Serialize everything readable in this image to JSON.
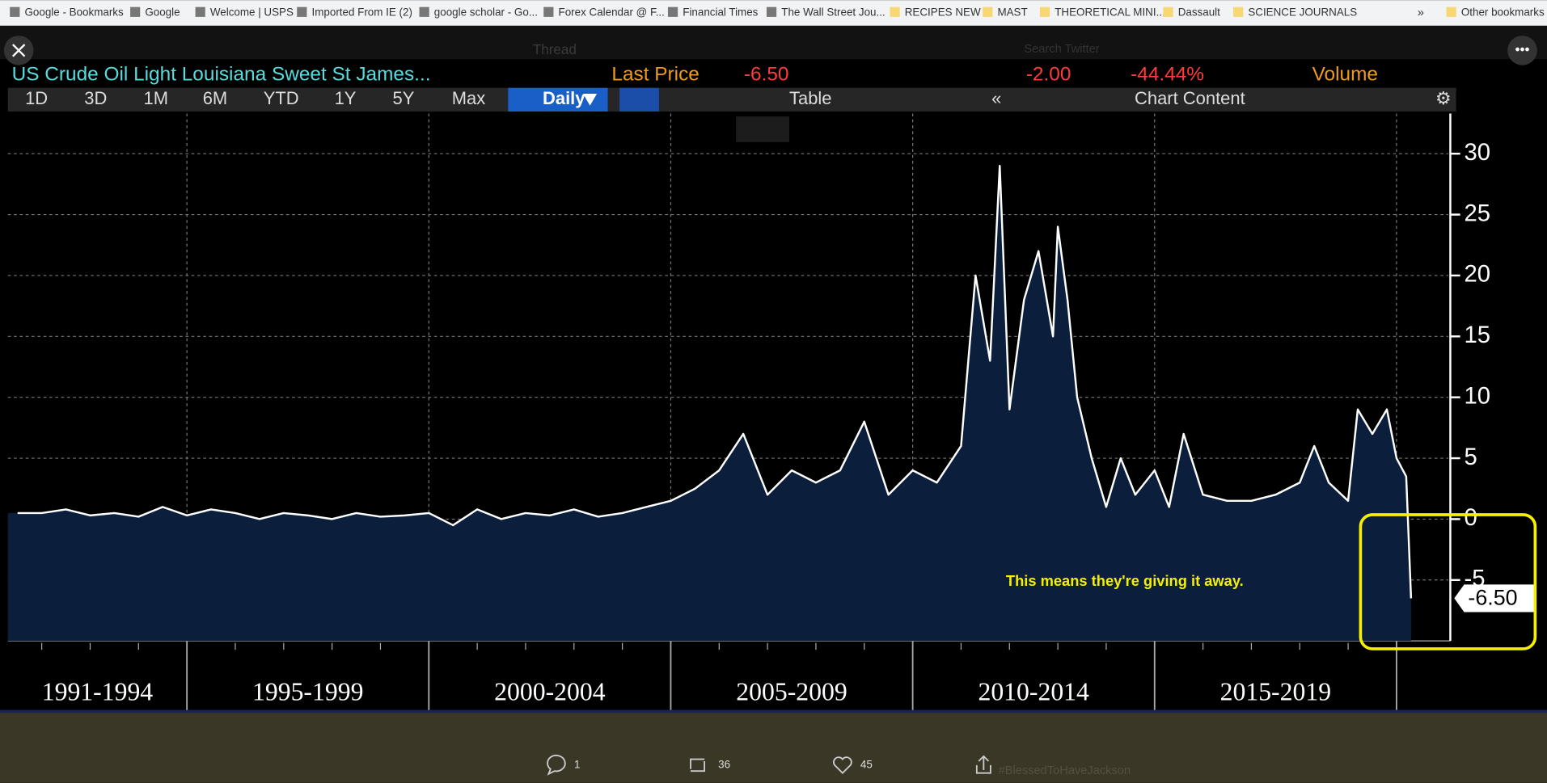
{
  "bookmarks": [
    "Google - Bookmarks",
    "Google",
    "Welcome | USPS",
    "Imported From IE (2)",
    "google scholar - Go...",
    "Forex Calendar @ F...",
    "Financial Times",
    "The Wall Street Jou...",
    "RECIPES NEW",
    "MAST",
    "THEORETICAL MINI...",
    "Dassault",
    "SCIENCE JOURNALS",
    "Other bookmarks"
  ],
  "background": {
    "thread": "Thread",
    "search": "Search Twitter",
    "hashtag": "#BlessedToHaveJackson"
  },
  "terminal": {
    "security": "US Crude Oil Light Louisiana Sweet St James...",
    "last_price_label": "Last Price",
    "last_price": "-6.50",
    "change": "-2.00",
    "change_pct": "-44.44%",
    "volume_label": "Volume",
    "ranges": [
      "1D",
      "3D",
      "1M",
      "6M",
      "YTD",
      "1Y",
      "5Y",
      "Max"
    ],
    "frequency": "Daily",
    "table": "Table",
    "chart_content": "Chart Content"
  },
  "chart_data": {
    "type": "line",
    "color": "#ffffff",
    "fill": "#0b1f3d",
    "grid": true,
    "x": [
      1991.5,
      1992,
      1992.5,
      1993,
      1993.5,
      1994,
      1994.5,
      1995,
      1995.5,
      1996,
      1996.5,
      1997,
      1997.5,
      1998,
      1998.5,
      1999,
      1999.5,
      2000,
      2000.5,
      2001,
      2001.5,
      2002,
      2002.5,
      2003,
      2003.5,
      2004,
      2004.5,
      2005,
      2005.5,
      2006,
      2006.5,
      2007,
      2007.5,
      2008,
      2008.5,
      2009,
      2009.5,
      2010,
      2010.5,
      2011,
      2011.3,
      2011.6,
      2011.8,
      2012,
      2012.3,
      2012.6,
      2012.9,
      2013,
      2013.2,
      2013.4,
      2013.7,
      2014,
      2014.3,
      2014.6,
      2015,
      2015.3,
      2015.6,
      2016,
      2016.5,
      2017,
      2017.5,
      2018,
      2018.3,
      2018.6,
      2019,
      2019.2,
      2019.5,
      2019.8,
      2020,
      2020.2,
      2020.3
    ],
    "values": [
      0.5,
      0.5,
      0.8,
      0.3,
      0.5,
      0.2,
      1.0,
      0.3,
      0.8,
      0.5,
      0,
      0.5,
      0.3,
      0,
      0.5,
      0.2,
      0.3,
      0.5,
      -0.5,
      0.8,
      0,
      0.5,
      0.3,
      0.8,
      0.2,
      0.5,
      1.0,
      1.5,
      2.5,
      4,
      7,
      2,
      4,
      3,
      4,
      8,
      2,
      4,
      3,
      6,
      20,
      13,
      29,
      9,
      18,
      22,
      15,
      24,
      18,
      10,
      5,
      1,
      5,
      2,
      4,
      1,
      7,
      2,
      1.5,
      1.5,
      2,
      3,
      6,
      3,
      1.5,
      9,
      7,
      9,
      5,
      3.5,
      -6.5
    ],
    "xlim": [
      1991.3,
      2020.5
    ],
    "xticks": [
      1995,
      2000,
      2005,
      2010,
      2015,
      2020
    ],
    "period_labels": [
      "1991-1994",
      "1995-1999",
      "2000-2004",
      "2005-2009",
      "2010-2014",
      "2015-2019"
    ],
    "ylim": [
      -10,
      33.3
    ],
    "yticks": [
      -5,
      0,
      5,
      10,
      15,
      20,
      25,
      30
    ],
    "last_value_label": "-6.50",
    "annotation": "This means they're giving it away."
  },
  "tweet_stats": {
    "replies": 1,
    "retweets": 36,
    "likes": 45
  }
}
